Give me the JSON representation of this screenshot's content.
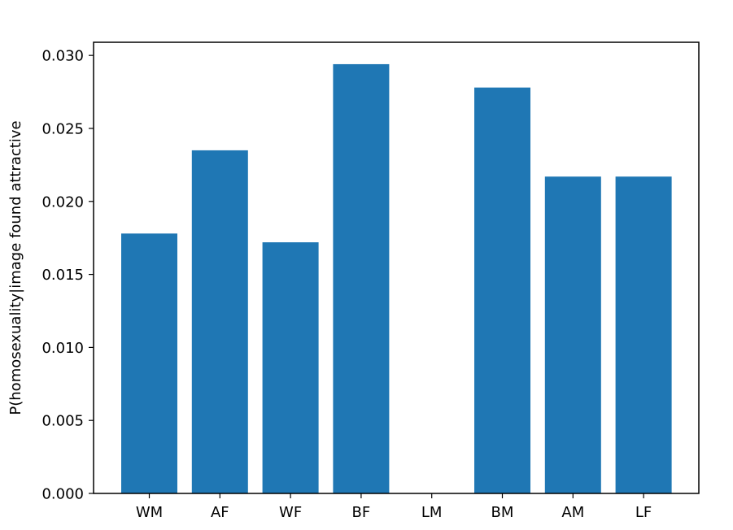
{
  "chart_data": {
    "type": "bar",
    "title": "",
    "xlabel": "",
    "ylabel": "P(homosexuality|image found attractive",
    "categories": [
      "WM",
      "AF",
      "WF",
      "BF",
      "LM",
      "BM",
      "AM",
      "LF"
    ],
    "values": [
      0.0178,
      0.0235,
      0.0172,
      0.0294,
      0.0,
      0.0278,
      0.0217,
      0.0217
    ],
    "ylim": [
      0,
      0.0309
    ],
    "yticks": [
      0.0,
      0.005,
      0.01,
      0.015,
      0.02,
      0.025,
      0.03
    ],
    "ytick_labels": [
      "0.000",
      "0.005",
      "0.010",
      "0.015",
      "0.020",
      "0.025",
      "0.030"
    ],
    "bar_color": "#1f77b4",
    "grid": false,
    "legend": "none"
  }
}
